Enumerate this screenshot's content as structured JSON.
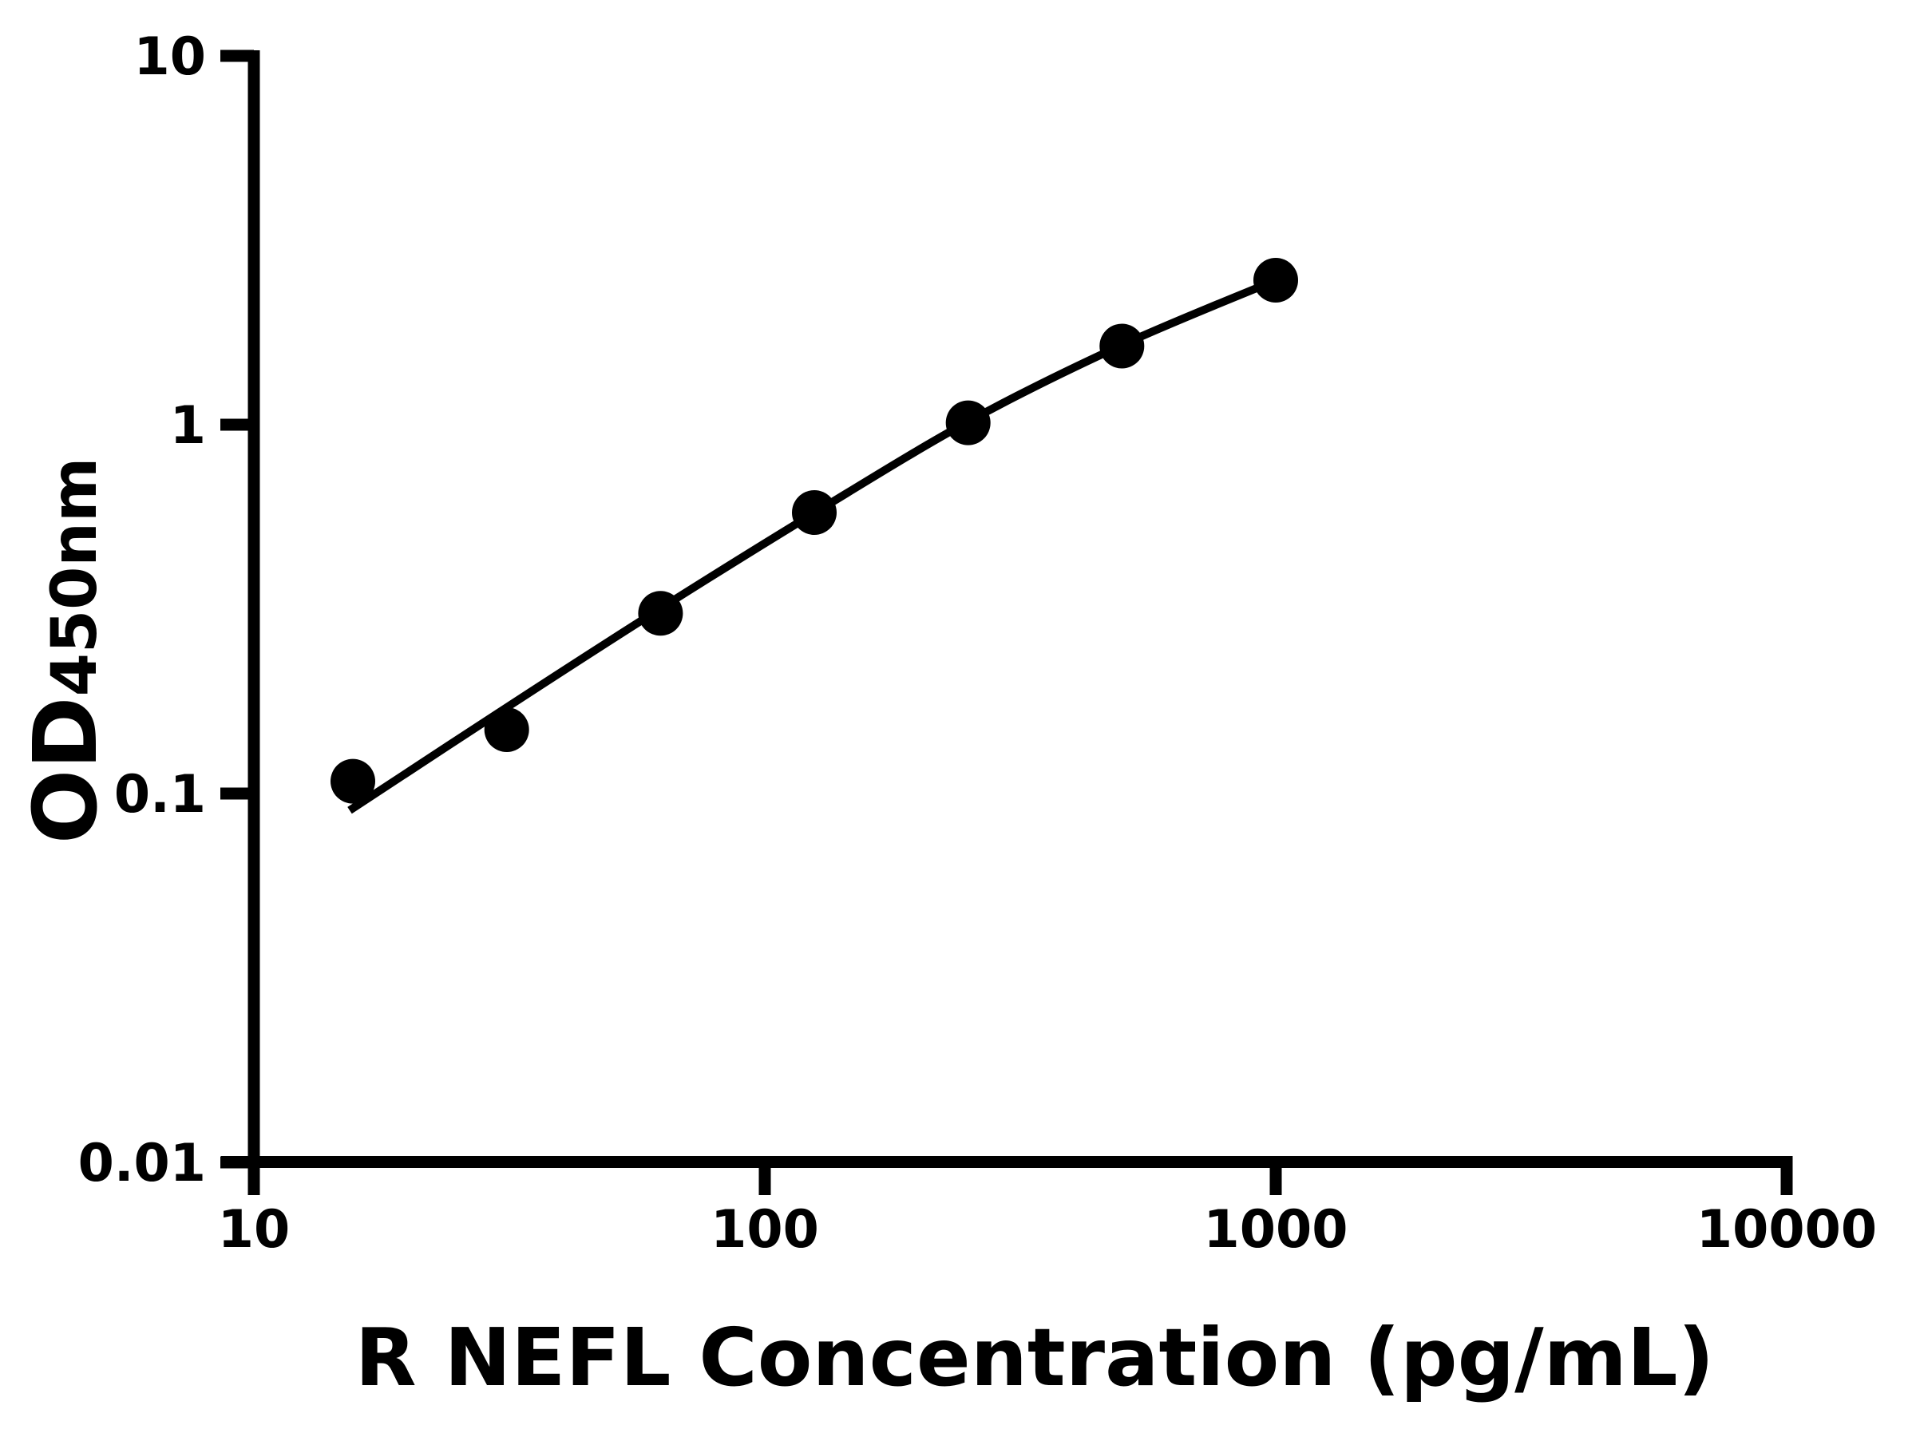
{
  "chart_data": {
    "type": "scatter",
    "title": "",
    "xlabel": "R NEFL Concentration (pg/mL)",
    "ylabel": "OD450nm",
    "ylabel_main": "OD",
    "ylabel_sub": "450nm",
    "x_scale": "log",
    "y_scale": "log",
    "xlim": [
      10,
      10000
    ],
    "ylim": [
      0.01,
      10
    ],
    "x_ticks": [
      10,
      100,
      1000,
      10000
    ],
    "x_tick_labels": [
      "10",
      "100",
      "1000",
      "10000"
    ],
    "y_ticks": [
      10,
      1,
      0.1,
      0.01
    ],
    "y_tick_labels": [
      "10",
      "1",
      "0.1",
      "0.01"
    ],
    "grid": false,
    "legend": null,
    "background_color": "#ffffff",
    "marker_color": "#000000",
    "line_color": "#000000",
    "marker_radius_px": 28,
    "curve_stroke_px": 10,
    "points": [
      [
        15.625,
        0.108
      ],
      [
        31.25,
        0.149
      ],
      [
        62.5,
        0.308
      ],
      [
        125,
        0.578
      ],
      [
        250,
        1.012
      ],
      [
        500,
        1.634
      ],
      [
        1000,
        2.465
      ]
    ],
    "curve_points": [
      [
        15.4,
        0.09
      ],
      [
        31.2,
        0.171
      ],
      [
        62.6,
        0.318
      ],
      [
        125.4,
        0.578
      ],
      [
        250.6,
        1.021
      ],
      [
        497,
        1.638
      ],
      [
        1001,
        2.465
      ]
    ]
  }
}
